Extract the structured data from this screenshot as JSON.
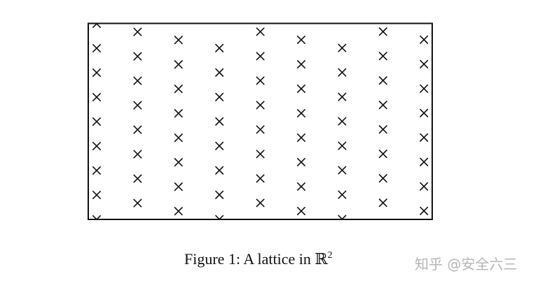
{
  "figure": {
    "caption_prefix": "Figure 1: A lattice in ",
    "caption_field": "ℝ",
    "caption_superscript": "2",
    "stroke_color": "#111111"
  },
  "lattice": {
    "marker": "cross",
    "columns": 9,
    "rows_visible": 8
  },
  "watermark": {
    "text": "知乎 @安全六三"
  }
}
